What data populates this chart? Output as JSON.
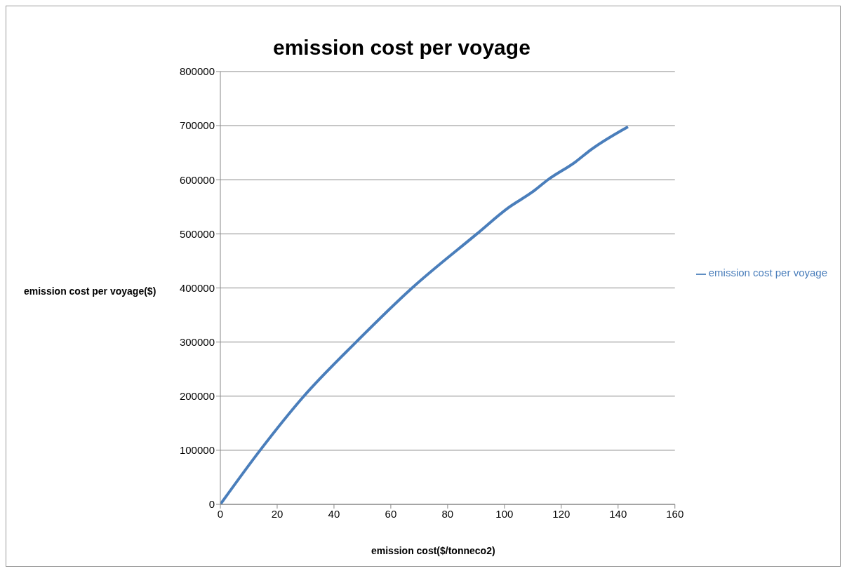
{
  "chart_data": {
    "type": "line",
    "title": "emission cost per voyage",
    "xlabel": "emission cost($/tonneco2)",
    "ylabel": "emission cost  per voyage($)",
    "x": [
      0,
      14,
      29.4,
      47.8,
      67.5,
      90.3,
      101.3,
      110,
      115.3,
      125,
      130.3,
      143.5
    ],
    "series": [
      {
        "name": "emission cost per voyage",
        "color": "#4a7ebb",
        "values": [
          0,
          100000,
          200000,
          300000,
          400000,
          500000,
          548000,
          578000,
          600000,
          633000,
          655000,
          698000
        ]
      }
    ],
    "xlim": [
      0,
      160
    ],
    "xticks": [
      0,
      20,
      40,
      60,
      80,
      100,
      120,
      140,
      160
    ],
    "ylim": [
      0,
      800000
    ],
    "yticks": [
      0,
      100000,
      200000,
      300000,
      400000,
      500000,
      600000,
      700000,
      800000
    ],
    "grid": "y",
    "legend": "right",
    "marker": "none",
    "line_style": "solid"
  }
}
